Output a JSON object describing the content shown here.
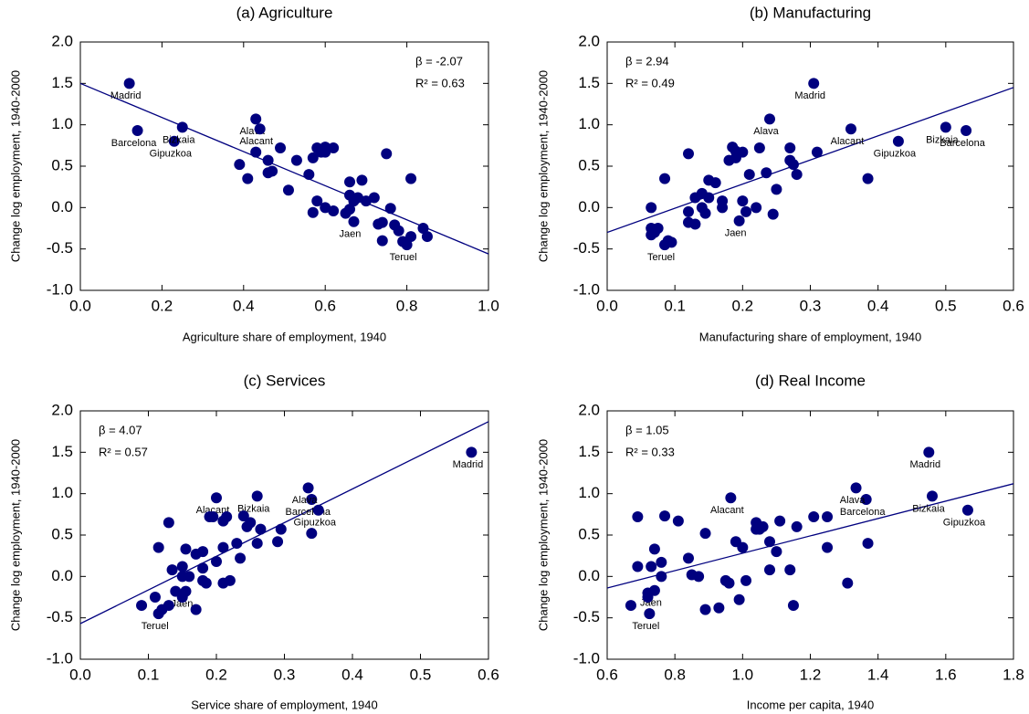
{
  "chart_data": [
    {
      "type": "scatter",
      "title": "(a) Agriculture",
      "xlabel": "Agriculture share of employment, 1940",
      "ylabel": "Change log employment, 1940-2000",
      "color": "#00007f",
      "grid": false,
      "annotation_corner": "top-right",
      "annotations": [
        "β  = -2.07",
        "R² =  0.63"
      ],
      "xlim": [
        0,
        1
      ],
      "xticks": [
        {
          "value": 0,
          "label": "0.0"
        },
        0.2,
        0.4,
        0.6,
        0.8,
        {
          "value": 1,
          "label": "1.0"
        }
      ],
      "ylim": [
        -1,
        2
      ],
      "yticks": [
        {
          "value": -1,
          "label": "-1.0"
        },
        -0.5,
        {
          "value": 0,
          "label": "0.0"
        },
        0.5,
        {
          "value": 1,
          "label": "1.0"
        },
        1.5,
        {
          "value": 2,
          "label": "2.0"
        }
      ],
      "fit": {
        "x": [
          0,
          1
        ],
        "values": [
          1.5,
          -0.56
        ]
      },
      "x": [
        0.12,
        0.14,
        0.23,
        0.25,
        0.43,
        0.44,
        0.39,
        0.41,
        0.43,
        0.46,
        0.46,
        0.47,
        0.49,
        0.51,
        0.53,
        0.56,
        0.57,
        0.58,
        0.59,
        0.6,
        0.6,
        0.62,
        0.57,
        0.58,
        0.6,
        0.62,
        0.65,
        0.66,
        0.66,
        0.67,
        0.69,
        0.7,
        0.72,
        0.67,
        0.66,
        0.75,
        0.74,
        0.74,
        0.76,
        0.77,
        0.78,
        0.79,
        0.8,
        0.81,
        0.81,
        0.84,
        0.85,
        0.73,
        0.68
      ],
      "values": [
        1.5,
        0.93,
        0.8,
        0.97,
        1.07,
        0.95,
        0.52,
        0.35,
        0.67,
        0.57,
        0.42,
        0.44,
        0.72,
        0.21,
        0.57,
        0.4,
        0.6,
        0.72,
        0.67,
        0.73,
        0.67,
        0.72,
        -0.06,
        0.08,
        0.0,
        -0.04,
        -0.07,
        0.31,
        0.15,
        0.08,
        0.33,
        0.08,
        0.12,
        -0.17,
        -0.02,
        0.65,
        -0.18,
        -0.4,
        -0.01,
        -0.21,
        -0.28,
        -0.41,
        -0.45,
        0.35,
        -0.35,
        -0.25,
        -0.35,
        -0.2,
        0.12
      ],
      "point_labels": [
        "Madrid",
        "Barcelona",
        "Gipuzkoa",
        "Bizkaia",
        "Alava",
        "Alacant",
        null,
        null,
        null,
        null,
        null,
        null,
        null,
        null,
        null,
        null,
        null,
        null,
        null,
        null,
        null,
        null,
        null,
        null,
        null,
        null,
        null,
        null,
        null,
        null,
        null,
        null,
        null,
        "Jaen",
        null,
        null,
        null,
        null,
        null,
        null,
        null,
        null,
        "Teruel",
        null,
        null,
        null,
        null,
        null,
        null
      ]
    },
    {
      "type": "scatter",
      "title": "(b) Manufacturing",
      "xlabel": "Manufacturing share of employment, 1940",
      "ylabel": "Change log employment, 1940-2000",
      "color": "#00007f",
      "grid": false,
      "annotation_corner": "top-left",
      "annotations": [
        "β  =  2.94",
        "R² =  0.49"
      ],
      "xlim": [
        0,
        0.6
      ],
      "xticks": [
        {
          "value": 0,
          "label": "0.0"
        },
        0.1,
        0.2,
        0.3,
        0.4,
        0.5,
        0.6
      ],
      "ylim": [
        -1,
        2
      ],
      "yticks": [
        {
          "value": -1,
          "label": "-1.0"
        },
        -0.5,
        {
          "value": 0,
          "label": "0.0"
        },
        0.5,
        {
          "value": 1,
          "label": "1.0"
        },
        1.5,
        {
          "value": 2,
          "label": "2.0"
        }
      ],
      "fit": {
        "x": [
          0,
          0.6
        ],
        "values": [
          -0.3,
          1.45
        ]
      },
      "x": [
        0.305,
        0.53,
        0.43,
        0.5,
        0.24,
        0.36,
        0.065,
        0.065,
        0.065,
        0.07,
        0.075,
        0.085,
        0.09,
        0.095,
        0.085,
        0.12,
        0.12,
        0.12,
        0.13,
        0.13,
        0.14,
        0.14,
        0.145,
        0.15,
        0.15,
        0.16,
        0.17,
        0.17,
        0.18,
        0.185,
        0.19,
        0.19,
        0.2,
        0.195,
        0.2,
        0.205,
        0.21,
        0.22,
        0.225,
        0.235,
        0.245,
        0.25,
        0.27,
        0.27,
        0.28,
        0.275,
        0.31,
        0.385
      ],
      "values": [
        1.5,
        0.93,
        0.8,
        0.97,
        1.07,
        0.95,
        0.0,
        -0.25,
        -0.33,
        -0.3,
        -0.25,
        -0.45,
        -0.4,
        -0.42,
        0.35,
        0.65,
        -0.05,
        -0.18,
        0.12,
        -0.2,
        0.0,
        0.17,
        -0.07,
        0.33,
        0.12,
        0.3,
        0.08,
        0.0,
        0.57,
        0.73,
        0.68,
        0.6,
        0.67,
        -0.16,
        0.08,
        -0.05,
        0.4,
        0.0,
        0.72,
        0.42,
        -0.08,
        0.22,
        0.72,
        0.57,
        0.4,
        0.52,
        0.67,
        0.35
      ],
      "point_labels": [
        "Madrid",
        "Barcelona",
        "Gipuzkoa",
        "Bizkaia",
        "Alava",
        "Alacant",
        null,
        null,
        null,
        null,
        null,
        "Teruel",
        null,
        null,
        null,
        null,
        null,
        null,
        null,
        null,
        null,
        null,
        null,
        null,
        null,
        null,
        null,
        null,
        null,
        null,
        null,
        null,
        null,
        "Jaen",
        null,
        null,
        null,
        null,
        null,
        null,
        null,
        null,
        null,
        null,
        null,
        null,
        null,
        null
      ]
    },
    {
      "type": "scatter",
      "title": "(c) Services",
      "xlabel": "Service share of employment, 1940",
      "ylabel": "Change log employment, 1940-2000",
      "color": "#00007f",
      "grid": false,
      "annotation_corner": "top-left",
      "annotations": [
        "β  =  4.07",
        "R² =  0.57"
      ],
      "xlim": [
        0,
        0.6
      ],
      "xticks": [
        {
          "value": 0,
          "label": "0.0"
        },
        0.1,
        0.2,
        0.3,
        0.4,
        0.5,
        0.6
      ],
      "ylim": [
        -1,
        2
      ],
      "yticks": [
        {
          "value": -1,
          "label": "-1.0"
        },
        -0.5,
        {
          "value": 0,
          "label": "0.0"
        },
        0.5,
        {
          "value": 1,
          "label": "1.0"
        },
        1.5,
        {
          "value": 2,
          "label": "2.0"
        }
      ],
      "fit": {
        "x": [
          0,
          0.6
        ],
        "values": [
          -0.57,
          1.87
        ]
      },
      "x": [
        0.575,
        0.34,
        0.35,
        0.26,
        0.335,
        0.2,
        0.115,
        0.155,
        0.09,
        0.11,
        0.115,
        0.12,
        0.13,
        0.13,
        0.135,
        0.14,
        0.15,
        0.15,
        0.15,
        0.155,
        0.16,
        0.17,
        0.17,
        0.18,
        0.18,
        0.18,
        0.185,
        0.19,
        0.195,
        0.2,
        0.21,
        0.21,
        0.21,
        0.215,
        0.22,
        0.23,
        0.235,
        0.24,
        0.245,
        0.25,
        0.26,
        0.265,
        0.29,
        0.295,
        0.34
      ],
      "values": [
        1.5,
        0.93,
        0.8,
        0.97,
        1.07,
        0.95,
        -0.45,
        -0.18,
        -0.35,
        -0.25,
        0.35,
        -0.4,
        -0.35,
        0.65,
        0.08,
        -0.18,
        -0.25,
        0.12,
        0.0,
        0.33,
        0.0,
        -0.4,
        0.27,
        0.3,
        0.1,
        -0.05,
        -0.08,
        0.72,
        0.72,
        0.18,
        0.67,
        0.35,
        -0.08,
        0.72,
        -0.05,
        0.4,
        0.22,
        0.73,
        0.6,
        0.65,
        0.4,
        0.57,
        0.42,
        0.57,
        0.52
      ],
      "point_labels": [
        "Madrid",
        "Barcelona",
        "Gipuzkoa",
        "Bizkaia",
        "Alava",
        "Alacant",
        "Teruel",
        "Jaen",
        null,
        null,
        null,
        null,
        null,
        null,
        null,
        null,
        null,
        null,
        null,
        null,
        null,
        null,
        null,
        null,
        null,
        null,
        null,
        null,
        null,
        null,
        null,
        null,
        null,
        null,
        null,
        null,
        null,
        null,
        null,
        null,
        null,
        null,
        null,
        null,
        null
      ]
    },
    {
      "type": "scatter",
      "title": "(d) Real Income",
      "xlabel": "Income per capita, 1940",
      "ylabel": "Change log employment, 1940-2000",
      "color": "#00007f",
      "grid": false,
      "annotation_corner": "top-left",
      "annotations": [
        "β  =  1.05",
        "R² =  0.33"
      ],
      "xlim": [
        0.6,
        1.8
      ],
      "xticks": [
        0.6,
        0.8,
        {
          "value": 1,
          "label": "1.0"
        },
        1.2,
        1.4,
        1.6,
        1.8
      ],
      "ylim": [
        -1,
        2
      ],
      "yticks": [
        {
          "value": -1,
          "label": "-1.0"
        },
        -0.5,
        {
          "value": 0,
          "label": "0.0"
        },
        0.5,
        {
          "value": 1,
          "label": "1.0"
        },
        1.5,
        {
          "value": 2,
          "label": "2.0"
        }
      ],
      "fit": {
        "x": [
          0.6,
          1.8
        ],
        "values": [
          -0.14,
          1.12
        ]
      },
      "x": [
        1.55,
        1.365,
        1.665,
        1.56,
        1.335,
        0.965,
        0.74,
        0.725,
        0.67,
        0.69,
        0.69,
        0.72,
        0.72,
        0.73,
        0.74,
        0.76,
        0.76,
        0.77,
        0.81,
        0.84,
        0.85,
        0.87,
        0.89,
        0.89,
        0.93,
        0.95,
        0.96,
        0.98,
        0.99,
        1.0,
        1.01,
        1.04,
        1.04,
        1.05,
        1.08,
        1.08,
        1.1,
        1.11,
        1.14,
        1.15,
        1.16,
        1.21,
        1.25,
        1.25,
        1.31,
        1.37,
        1.06
      ],
      "values": [
        1.5,
        0.93,
        0.8,
        0.97,
        1.07,
        0.95,
        -0.17,
        -0.45,
        -0.35,
        0.72,
        0.12,
        -0.2,
        -0.25,
        0.12,
        0.33,
        0.17,
        0.0,
        0.73,
        0.67,
        0.22,
        0.02,
        0.0,
        0.52,
        -0.4,
        -0.38,
        -0.05,
        -0.08,
        0.42,
        -0.28,
        0.35,
        -0.05,
        0.57,
        0.65,
        0.57,
        0.42,
        0.08,
        0.3,
        0.67,
        0.08,
        -0.35,
        0.6,
        0.72,
        0.72,
        0.35,
        -0.08,
        0.4,
        0.6
      ],
      "point_labels": [
        "Madrid",
        "Barcelona",
        "Gipuzkoa",
        "Bizkaia",
        "Alava",
        "Alacant",
        "Jaen",
        "Teruel",
        null,
        null,
        null,
        null,
        null,
        null,
        null,
        null,
        null,
        null,
        null,
        null,
        null,
        null,
        null,
        null,
        null,
        null,
        null,
        null,
        null,
        null,
        null,
        null,
        null,
        null,
        null,
        null,
        null,
        null,
        null,
        null,
        null,
        null,
        null,
        null,
        null,
        null,
        null
      ]
    }
  ]
}
